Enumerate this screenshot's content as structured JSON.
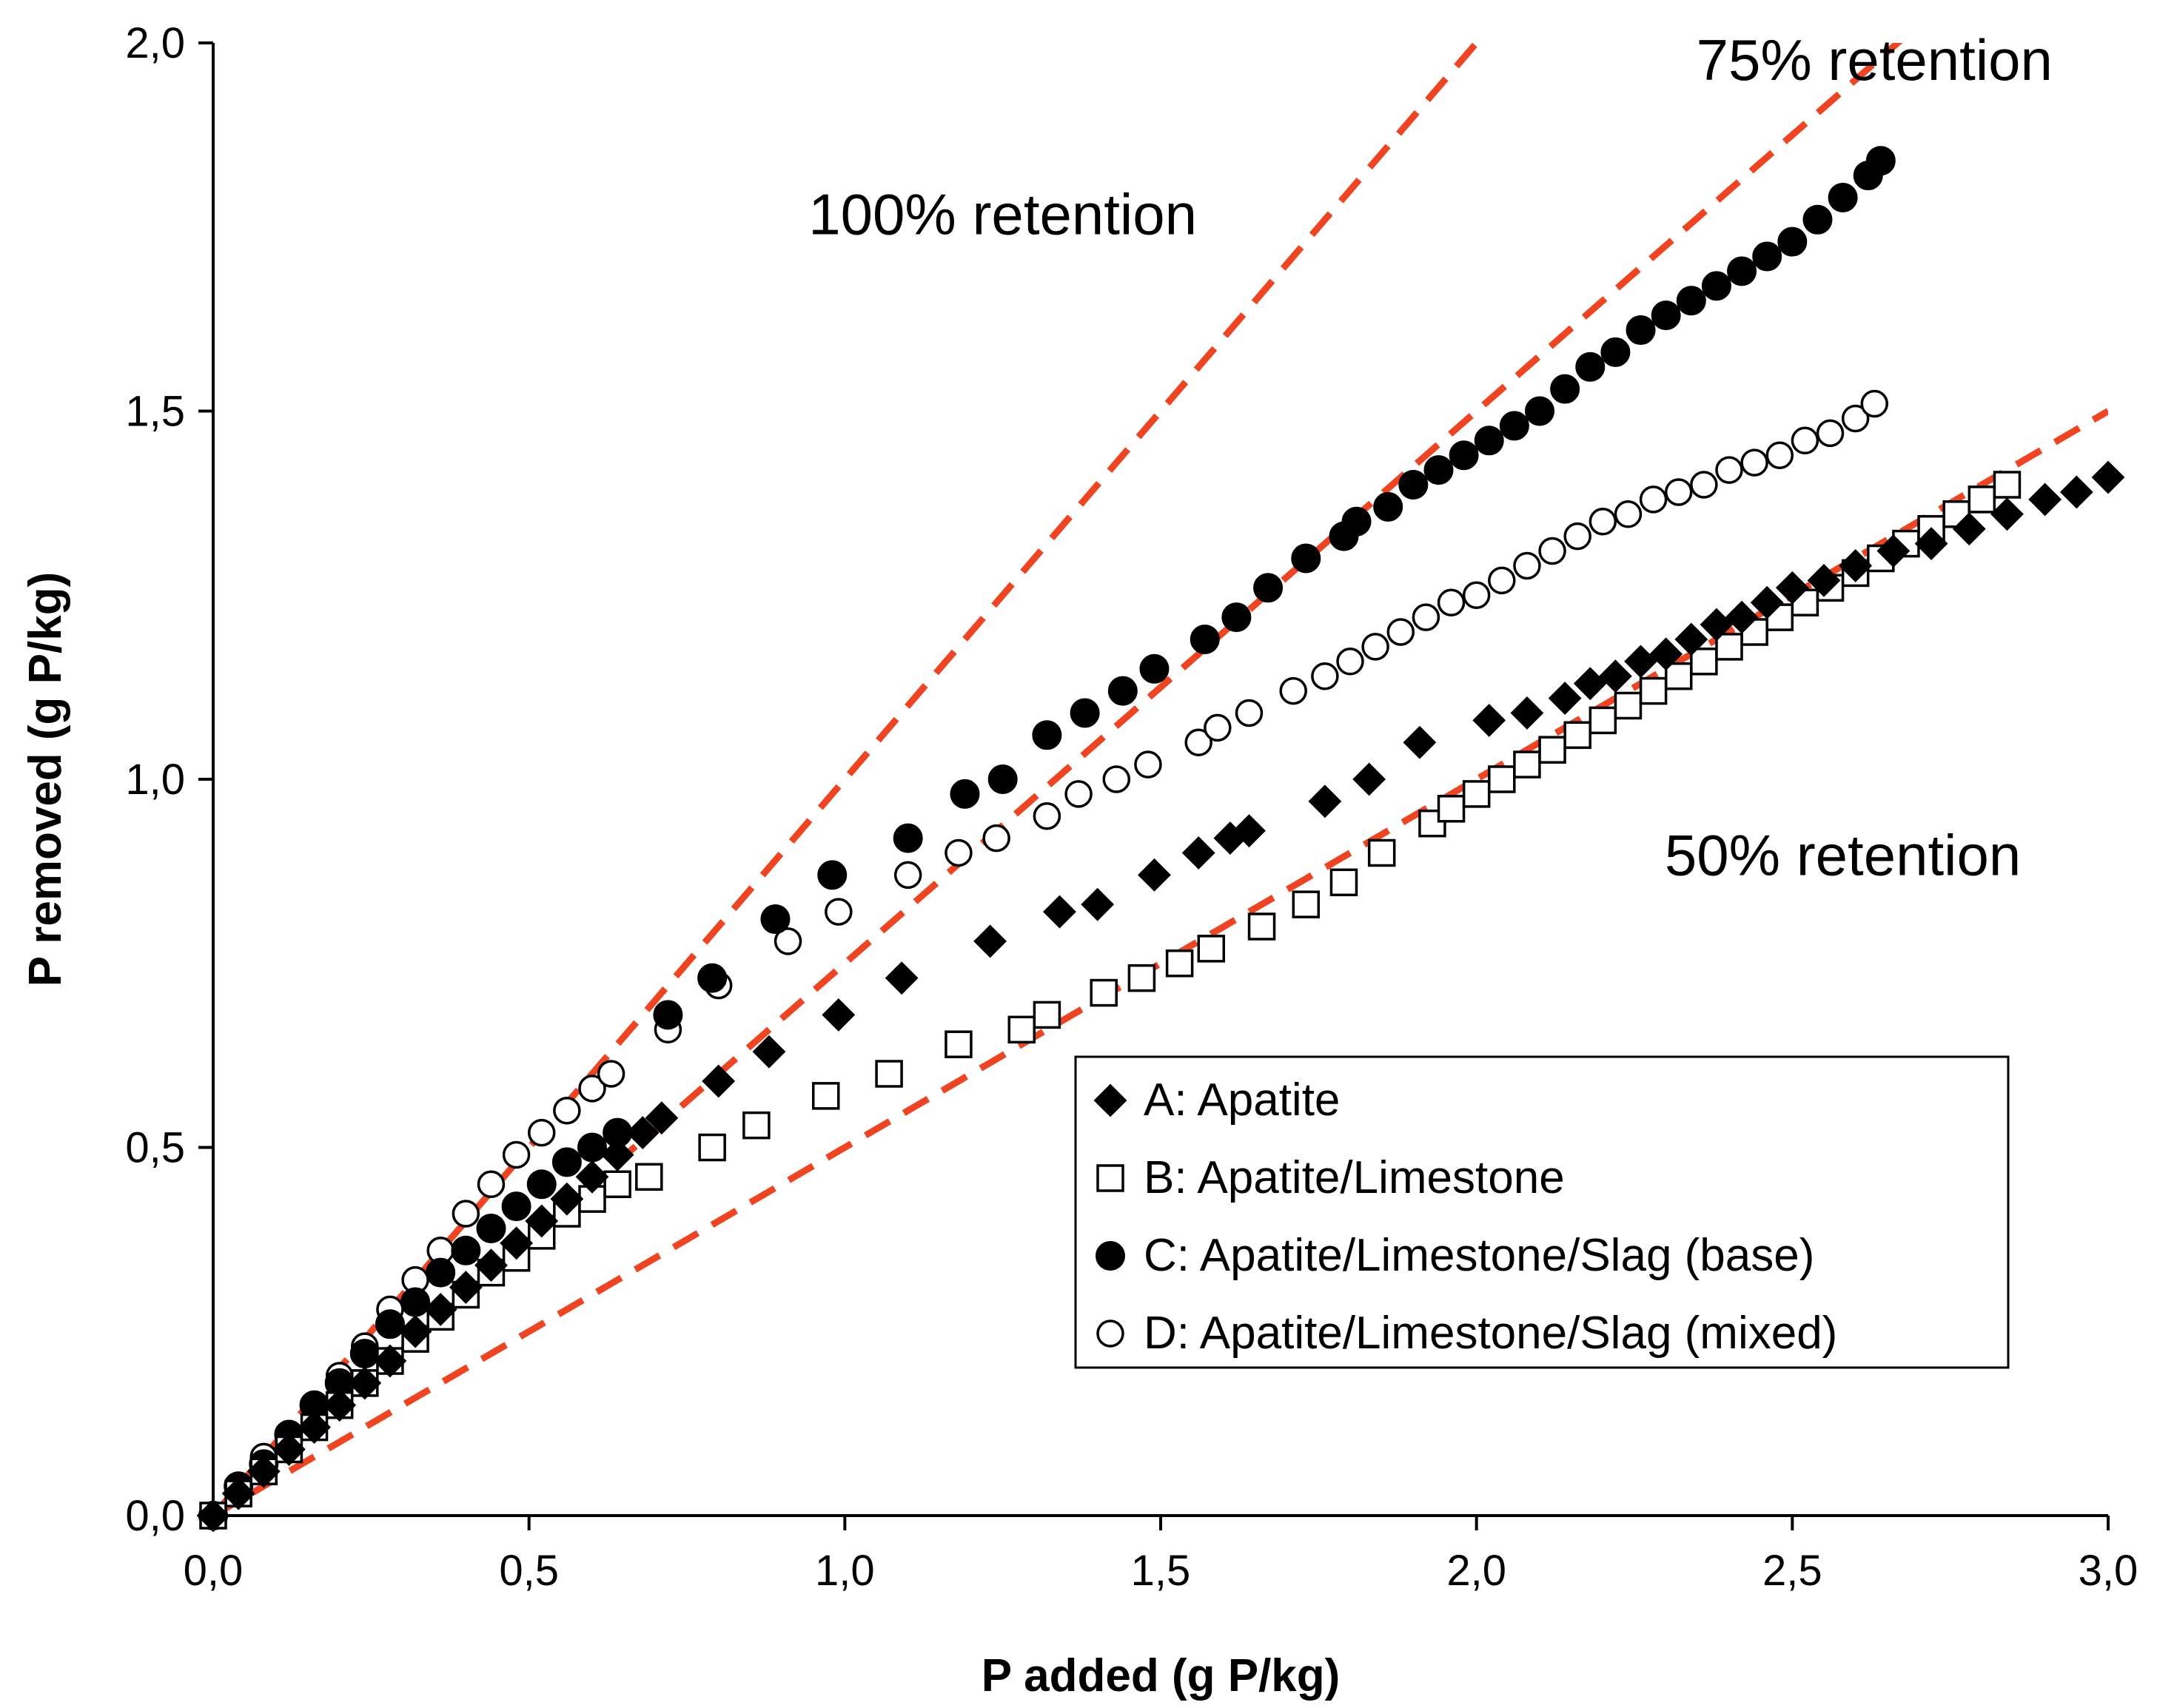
{
  "chart_data": {
    "type": "scatter",
    "title": "",
    "xlabel": "P added (g P/kg)",
    "ylabel": "P removed (g P/kg)",
    "xlim": [
      0,
      3.0
    ],
    "ylim": [
      0,
      2.0
    ],
    "xticks": [
      0,
      0.5,
      1.0,
      1.5,
      2.0,
      2.5,
      3.0
    ],
    "yticks": [
      0,
      0.5,
      1.0,
      1.5,
      2.0
    ],
    "xtick_labels": [
      "0,0",
      "0,5",
      "1,0",
      "1,5",
      "2,0",
      "2,5",
      "3,0"
    ],
    "ytick_labels": [
      "0,0",
      "0,5",
      "1,0",
      "1,5",
      "2,0"
    ],
    "grid": false,
    "legend_position": "bottom-right",
    "reference_lines": [
      {
        "name": "100% retention",
        "slope": 1.0,
        "color": "#ee4422"
      },
      {
        "name": "75% retention",
        "slope": 0.75,
        "color": "#ee4422"
      },
      {
        "name": "50% retention",
        "slope": 0.5,
        "color": "#ee4422"
      }
    ],
    "annotations": [
      {
        "text": "100% retention",
        "x": 1.25,
        "y": 1.74
      },
      {
        "text": "75% retention",
        "x": 2.63,
        "y": 1.95
      },
      {
        "text": "50% retention",
        "x": 2.58,
        "y": 0.87
      }
    ],
    "series": [
      {
        "name": "A: Apatite",
        "marker": "filled-diamond",
        "x": [
          0,
          0.04,
          0.08,
          0.12,
          0.16,
          0.2,
          0.24,
          0.28,
          0.32,
          0.36,
          0.4,
          0.44,
          0.48,
          0.52,
          0.56,
          0.6,
          0.64,
          0.68,
          0.71,
          0.8,
          0.88,
          0.99,
          1.09,
          1.23,
          1.34,
          1.4,
          1.49,
          1.56,
          1.61,
          1.64,
          1.76,
          1.83,
          1.91,
          2.02,
          2.08,
          2.14,
          2.18,
          2.22,
          2.26,
          2.3,
          2.34,
          2.38,
          2.42,
          2.46,
          2.5,
          2.55,
          2.6,
          2.66,
          2.72,
          2.78,
          2.84,
          2.9,
          2.95,
          3.0
        ],
        "y": [
          0,
          0.03,
          0.06,
          0.09,
          0.12,
          0.15,
          0.18,
          0.21,
          0.25,
          0.28,
          0.31,
          0.34,
          0.37,
          0.4,
          0.43,
          0.46,
          0.49,
          0.52,
          0.54,
          0.59,
          0.63,
          0.68,
          0.73,
          0.78,
          0.82,
          0.83,
          0.87,
          0.9,
          0.92,
          0.93,
          0.97,
          1.0,
          1.05,
          1.08,
          1.09,
          1.11,
          1.13,
          1.14,
          1.16,
          1.17,
          1.19,
          1.21,
          1.22,
          1.24,
          1.26,
          1.27,
          1.29,
          1.31,
          1.32,
          1.34,
          1.36,
          1.38,
          1.39,
          1.41
        ]
      },
      {
        "name": "B: Apatite/Limestone",
        "marker": "open-square",
        "x": [
          0,
          0.04,
          0.08,
          0.12,
          0.16,
          0.2,
          0.24,
          0.28,
          0.32,
          0.36,
          0.4,
          0.44,
          0.48,
          0.52,
          0.56,
          0.6,
          0.64,
          0.69,
          0.79,
          0.86,
          0.97,
          1.07,
          1.18,
          1.28,
          1.32,
          1.41,
          1.47,
          1.53,
          1.58,
          1.66,
          1.73,
          1.79,
          1.85,
          1.93,
          1.96,
          2.0,
          2.04,
          2.08,
          2.12,
          2.16,
          2.2,
          2.24,
          2.28,
          2.32,
          2.36,
          2.4,
          2.44,
          2.48,
          2.52,
          2.56,
          2.6,
          2.64,
          2.68,
          2.72,
          2.76,
          2.8,
          2.84
        ],
        "y": [
          0,
          0.03,
          0.06,
          0.09,
          0.12,
          0.15,
          0.18,
          0.21,
          0.24,
          0.27,
          0.3,
          0.33,
          0.35,
          0.38,
          0.41,
          0.43,
          0.45,
          0.46,
          0.5,
          0.53,
          0.57,
          0.6,
          0.64,
          0.66,
          0.68,
          0.71,
          0.73,
          0.75,
          0.77,
          0.8,
          0.83,
          0.86,
          0.9,
          0.94,
          0.96,
          0.98,
          1.0,
          1.02,
          1.04,
          1.06,
          1.08,
          1.1,
          1.12,
          1.14,
          1.16,
          1.18,
          1.2,
          1.22,
          1.24,
          1.26,
          1.28,
          1.3,
          1.32,
          1.34,
          1.36,
          1.38,
          1.4
        ]
      },
      {
        "name": "C: Apatite/Limestone/Slag (base)",
        "marker": "filled-circle",
        "x": [
          0,
          0.04,
          0.08,
          0.12,
          0.16,
          0.2,
          0.24,
          0.28,
          0.32,
          0.36,
          0.4,
          0.44,
          0.48,
          0.52,
          0.56,
          0.6,
          0.64,
          0.72,
          0.79,
          0.89,
          0.98,
          1.1,
          1.19,
          1.25,
          1.32,
          1.38,
          1.44,
          1.49,
          1.57,
          1.62,
          1.67,
          1.73,
          1.79,
          1.81,
          1.86,
          1.9,
          1.94,
          1.98,
          2.02,
          2.06,
          2.1,
          2.14,
          2.18,
          2.22,
          2.26,
          2.3,
          2.34,
          2.38,
          2.42,
          2.46,
          2.5,
          2.54,
          2.58,
          2.62,
          2.64
        ],
        "y": [
          0,
          0.04,
          0.07,
          0.11,
          0.15,
          0.18,
          0.22,
          0.26,
          0.29,
          0.33,
          0.36,
          0.39,
          0.42,
          0.45,
          0.48,
          0.5,
          0.52,
          0.68,
          0.73,
          0.81,
          0.87,
          0.92,
          0.98,
          1.0,
          1.06,
          1.09,
          1.12,
          1.15,
          1.19,
          1.22,
          1.26,
          1.3,
          1.33,
          1.35,
          1.37,
          1.4,
          1.42,
          1.44,
          1.46,
          1.48,
          1.5,
          1.53,
          1.56,
          1.58,
          1.61,
          1.63,
          1.65,
          1.67,
          1.69,
          1.71,
          1.73,
          1.76,
          1.79,
          1.82,
          1.84
        ]
      },
      {
        "name": "D: Apatite/Limestone/Slag (mixed)",
        "marker": "open-circle",
        "x": [
          0,
          0.04,
          0.08,
          0.12,
          0.16,
          0.2,
          0.24,
          0.28,
          0.32,
          0.36,
          0.4,
          0.44,
          0.48,
          0.52,
          0.56,
          0.6,
          0.63,
          0.72,
          0.8,
          0.91,
          0.99,
          1.1,
          1.18,
          1.24,
          1.32,
          1.37,
          1.43,
          1.48,
          1.56,
          1.59,
          1.64,
          1.71,
          1.76,
          1.8,
          1.84,
          1.88,
          1.92,
          1.96,
          2.0,
          2.04,
          2.08,
          2.12,
          2.16,
          2.2,
          2.24,
          2.28,
          2.32,
          2.36,
          2.4,
          2.44,
          2.48,
          2.52,
          2.56,
          2.6,
          2.63
        ],
        "y": [
          0,
          0.04,
          0.08,
          0.11,
          0.15,
          0.19,
          0.23,
          0.28,
          0.32,
          0.36,
          0.41,
          0.45,
          0.49,
          0.52,
          0.55,
          0.58,
          0.6,
          0.66,
          0.72,
          0.78,
          0.82,
          0.87,
          0.9,
          0.92,
          0.95,
          0.98,
          1.0,
          1.02,
          1.05,
          1.07,
          1.09,
          1.12,
          1.14,
          1.16,
          1.18,
          1.2,
          1.22,
          1.24,
          1.25,
          1.27,
          1.29,
          1.31,
          1.33,
          1.35,
          1.36,
          1.38,
          1.39,
          1.4,
          1.42,
          1.43,
          1.44,
          1.46,
          1.47,
          1.49,
          1.51
        ]
      }
    ]
  }
}
